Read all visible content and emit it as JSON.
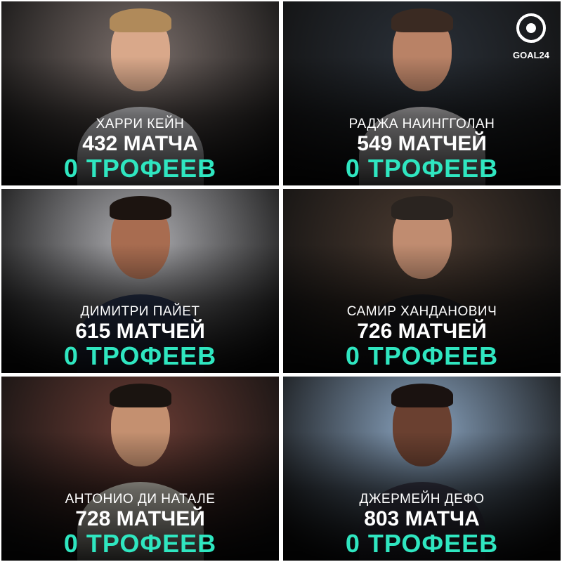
{
  "brand": {
    "logo_text": "GOAL24",
    "accent_color": "#2fe6c0"
  },
  "cards": [
    {
      "name": "ХАРРИ КЕЙН",
      "matches": "432 МАТЧА",
      "trophies": "0 ТРОФЕЕВ",
      "bg": "#7a6e6a",
      "skin": "#d9a88a",
      "hair": "#b08a5a",
      "shirt": "#e8e8ec"
    },
    {
      "name": "РАДЖА НАИНГГОЛАН",
      "matches": "549 МАТЧЕЙ",
      "trophies": "0 ТРОФЕЕВ",
      "bg": "#2a3038",
      "skin": "#b98266",
      "hair": "#3a2a22",
      "shirt": "#d8d6d8"
    },
    {
      "name": "ДИМИТРИ ПАЙЕТ",
      "matches": "615 МАТЧЕЙ",
      "trophies": "0 ТРОФЕЕВ",
      "bg": "#b0b0b4",
      "skin": "#a86c50",
      "hair": "#1c1410",
      "shirt": "#2a3550"
    },
    {
      "name": "САМИР ХАНДАНОВИЧ",
      "matches": "726 МАТЧЕЙ",
      "trophies": "0 ТРОФЕЕВ",
      "bg": "#4a3a30",
      "skin": "#c08c70",
      "hair": "#2a2420",
      "shirt": "#1e1e22"
    },
    {
      "name": "АНТОНИО ДИ НАТАЛЕ",
      "matches": "728 МАТЧЕЙ",
      "trophies": "0 ТРОФЕЕВ",
      "bg": "#6a3c34",
      "skin": "#c49070",
      "hair": "#1a1410",
      "shirt": "#e0ddd0"
    },
    {
      "name": "ДЖЕРМЕЙН ДЕФО",
      "matches": "803 МАТЧА",
      "trophies": "0 ТРОФЕЕВ",
      "bg": "#8aa4c0",
      "skin": "#6a4030",
      "hair": "#1a1210",
      "shirt": "#3a3a4a"
    }
  ]
}
